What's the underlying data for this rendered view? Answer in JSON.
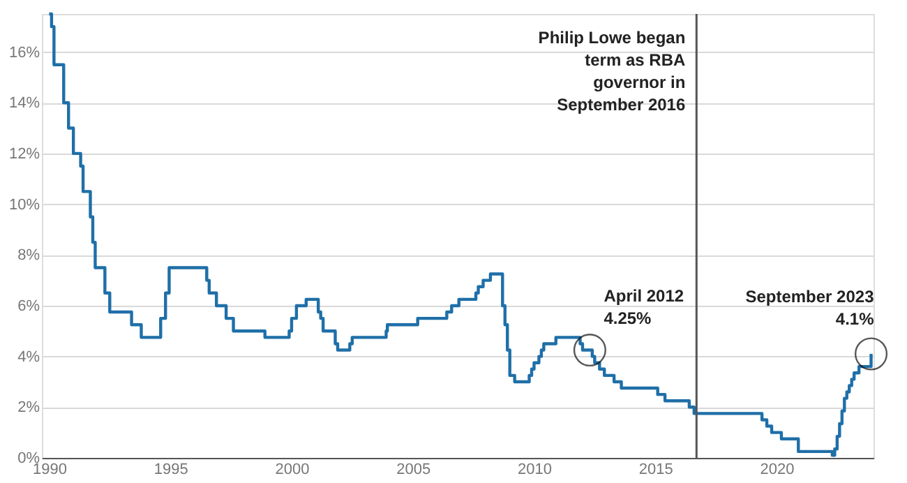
{
  "chart_data": {
    "type": "step",
    "line_style": "solid",
    "marker": "none",
    "grid": "y",
    "x": [
      1990.0,
      1990.1,
      1990.2,
      1990.6,
      1990.8,
      1991.0,
      1991.3,
      1991.4,
      1991.7,
      1991.8,
      1991.9,
      1992.3,
      1992.5,
      1993.4,
      1993.8,
      1994.6,
      1994.8,
      1994.95,
      1996.5,
      1996.6,
      1996.9,
      1997.3,
      1997.6,
      1998.9,
      1999.9,
      2000.0,
      2000.2,
      2000.6,
      2001.1,
      2001.2,
      2001.3,
      2001.8,
      2001.9,
      2002.4,
      2002.5,
      2003.9,
      2003.95,
      2005.2,
      2006.4,
      2006.6,
      2006.9,
      2007.6,
      2007.7,
      2007.9,
      2008.2,
      2008.7,
      2008.8,
      2008.9,
      2009.0,
      2009.2,
      2009.8,
      2009.9,
      2010.0,
      2010.2,
      2010.3,
      2010.4,
      2010.9,
      2011.9,
      2012.0,
      2012.4,
      2012.5,
      2012.7,
      2012.9,
      2013.3,
      2013.6,
      2015.1,
      2015.4,
      2016.4,
      2016.6,
      2019.4,
      2019.6,
      2019.8,
      2020.2,
      2020.9,
      2022.3,
      2022.4,
      2022.5,
      2022.6,
      2022.7,
      2022.8,
      2022.9,
      2023.0,
      2023.1,
      2023.2,
      2023.4,
      2023.9
    ],
    "series": [
      {
        "color": "#1f6fa8",
        "values": [
          17.5,
          17.0,
          15.5,
          14.0,
          13.0,
          12.0,
          11.5,
          10.5,
          9.5,
          8.5,
          7.5,
          6.5,
          5.75,
          5.25,
          4.75,
          5.5,
          6.5,
          7.5,
          7.0,
          6.5,
          6.0,
          5.5,
          5.0,
          4.75,
          5.0,
          5.5,
          6.0,
          6.25,
          5.75,
          5.5,
          5.0,
          4.5,
          4.25,
          4.5,
          4.75,
          5.0,
          5.25,
          5.5,
          5.75,
          6.0,
          6.25,
          6.5,
          6.75,
          7.0,
          7.25,
          6.0,
          5.25,
          4.25,
          3.25,
          3.0,
          3.25,
          3.5,
          3.75,
          4.0,
          4.25,
          4.5,
          4.75,
          4.5,
          4.25,
          4.0,
          3.75,
          3.5,
          3.25,
          3.0,
          2.75,
          2.5,
          2.25,
          2.0,
          1.75,
          1.5,
          1.25,
          1.0,
          0.75,
          0.25,
          0.1,
          0.35,
          0.85,
          1.35,
          1.85,
          2.35,
          2.6,
          2.85,
          3.1,
          3.35,
          3.6,
          4.1
        ]
      }
    ],
    "xlim": [
      1989.7,
      2024
    ],
    "xticks": [
      1990,
      1995,
      2000,
      2005,
      2010,
      2015,
      2020
    ],
    "ylim": [
      0,
      17.5
    ],
    "yticks": [
      {
        "value": 0,
        "label": "0%"
      },
      {
        "value": 2,
        "label": "2%"
      },
      {
        "value": 4,
        "label": "4%"
      },
      {
        "value": 6,
        "label": "6%"
      },
      {
        "value": 8,
        "label": "8%"
      },
      {
        "value": 10,
        "label": "10%"
      },
      {
        "value": 12,
        "label": "12%"
      },
      {
        "value": 14,
        "label": "14%"
      },
      {
        "value": 16,
        "label": "16%"
      }
    ],
    "ref_lines": [
      {
        "axis": "x",
        "value": 2016.7,
        "label": "Philip Lowe began\nterm as RBA\ngovernor in\nSeptember 2016",
        "color": "#555555"
      }
    ],
    "annotations": [
      {
        "text": "April 2012\n4.25%",
        "x": 2012.3,
        "y": 4.25
      },
      {
        "text": "September 2023\n4.1%",
        "x": 2023.9,
        "y": 4.1
      }
    ]
  }
}
